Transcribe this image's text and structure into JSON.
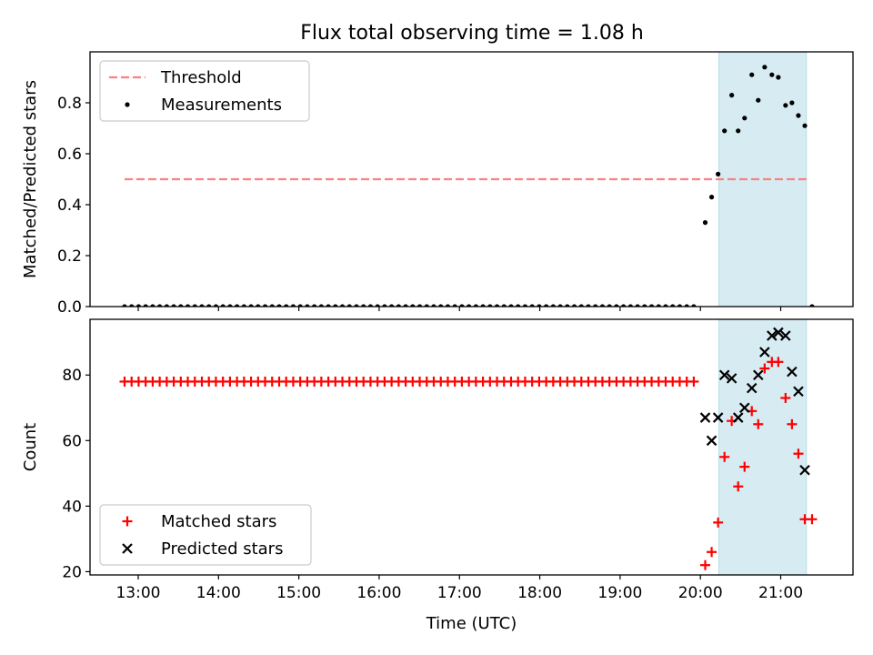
{
  "figure": {
    "title": "Flux total observing time = 1.08 h"
  },
  "chart_data": [
    {
      "type": "scatter",
      "ylabel": "Matched/Predicted stars",
      "xlabel": "",
      "xlim": [
        12.4,
        21.9
      ],
      "ylim": [
        0,
        1.0
      ],
      "yticks": [
        0.0,
        0.2,
        0.4,
        0.6,
        0.8
      ],
      "ytick_labels": [
        "0.0",
        "0.2",
        "0.4",
        "0.6",
        "0.8"
      ],
      "legend": {
        "placement": "top-left",
        "entries": [
          "Threshold",
          "Measurements"
        ]
      },
      "highlight_span": {
        "x0": 20.23,
        "x1": 21.32,
        "color": "#add8e6"
      },
      "threshold": {
        "name": "Threshold",
        "y": 0.5,
        "x0": 12.83,
        "x1": 21.33,
        "color": "#ff7f7f",
        "style": "dashed"
      },
      "series": [
        {
          "name": "Measurements",
          "marker": "dot",
          "color": "#000000",
          "zero_run": {
            "x_start": 12.83,
            "x_step": 0.0875,
            "count": 82,
            "y": 0
          },
          "points": [
            [
              20.06,
              0.33
            ],
            [
              20.14,
              0.43
            ],
            [
              20.22,
              0.52
            ],
            [
              20.3,
              0.69
            ],
            [
              20.39,
              0.83
            ],
            [
              20.47,
              0.69
            ],
            [
              20.55,
              0.74
            ],
            [
              20.64,
              0.91
            ],
            [
              20.72,
              0.81
            ],
            [
              20.8,
              0.94
            ],
            [
              20.89,
              0.91
            ],
            [
              20.97,
              0.9
            ],
            [
              21.06,
              0.79
            ],
            [
              21.14,
              0.8
            ],
            [
              21.22,
              0.75
            ],
            [
              21.3,
              0.71
            ],
            [
              21.39,
              0.0
            ]
          ]
        }
      ]
    },
    {
      "type": "scatter",
      "ylabel": "Count",
      "xlabel": "Time (UTC)",
      "xlim": [
        12.4,
        21.9
      ],
      "ylim": [
        19,
        97
      ],
      "yticks": [
        20,
        40,
        60,
        80
      ],
      "ytick_labels": [
        "20",
        "40",
        "60",
        "80"
      ],
      "xticks": [
        13,
        14,
        15,
        16,
        17,
        18,
        19,
        20,
        21
      ],
      "xtick_labels": [
        "13:00",
        "14:00",
        "15:00",
        "16:00",
        "17:00",
        "18:00",
        "19:00",
        "20:00",
        "21:00"
      ],
      "legend": {
        "placement": "bottom-left",
        "entries": [
          "Matched stars",
          "Predicted stars"
        ]
      },
      "highlight_span": {
        "x0": 20.23,
        "x1": 21.32,
        "color": "#add8e6"
      },
      "series": [
        {
          "name": "Matched stars",
          "marker": "plus",
          "color": "#ff0000",
          "constant_run": {
            "x_start": 12.83,
            "x_step": 0.0875,
            "count": 82,
            "y": 78
          },
          "points": [
            [
              20.06,
              22
            ],
            [
              20.14,
              26
            ],
            [
              20.22,
              35
            ],
            [
              20.3,
              55
            ],
            [
              20.39,
              66
            ],
            [
              20.47,
              46
            ],
            [
              20.55,
              52
            ],
            [
              20.64,
              69
            ],
            [
              20.72,
              65
            ],
            [
              20.8,
              82
            ],
            [
              20.89,
              84
            ],
            [
              20.97,
              84
            ],
            [
              21.06,
              73
            ],
            [
              21.14,
              65
            ],
            [
              21.22,
              56
            ],
            [
              21.3,
              36
            ],
            [
              21.39,
              36
            ]
          ]
        },
        {
          "name": "Predicted stars",
          "marker": "x",
          "color": "#000000",
          "points": [
            [
              20.06,
              67
            ],
            [
              20.14,
              60
            ],
            [
              20.22,
              67
            ],
            [
              20.3,
              80
            ],
            [
              20.39,
              79
            ],
            [
              20.47,
              67
            ],
            [
              20.55,
              70
            ],
            [
              20.64,
              76
            ],
            [
              20.72,
              80
            ],
            [
              20.8,
              87
            ],
            [
              20.89,
              92
            ],
            [
              20.97,
              93
            ],
            [
              21.06,
              92
            ],
            [
              21.14,
              81
            ],
            [
              21.22,
              75
            ],
            [
              21.3,
              51
            ]
          ]
        }
      ]
    }
  ]
}
